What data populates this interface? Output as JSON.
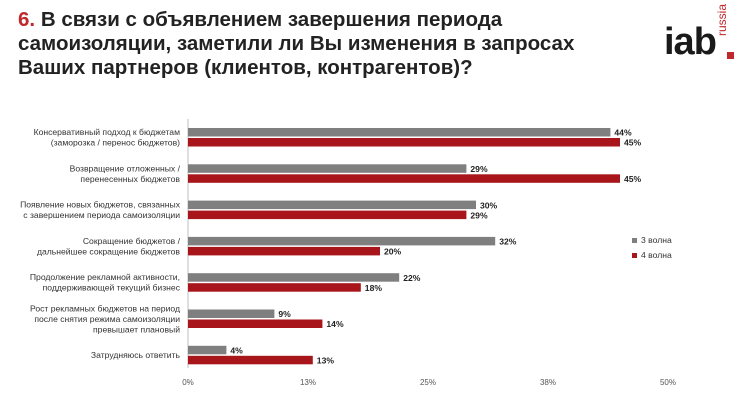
{
  "title": {
    "number": "6.",
    "text": "В связи с объявлением завершения периода самоизоляции, заметили ли Вы изменения в запросах Ваших партнеров (клиентов, контрагентов)?"
  },
  "logo": {
    "main": "iab",
    "sub": "russia"
  },
  "colors": {
    "series_1": "#7f7f7f",
    "series_2": "#a8161b",
    "accent": "#c0282d"
  },
  "chart_data": {
    "type": "bar",
    "orientation": "horizontal",
    "categories": [
      [
        "Консервативный подход к бюджетам",
        "(заморозка / перенос бюджетов)"
      ],
      [
        "Возвращение отложенных /",
        "перенесенных бюджетов"
      ],
      [
        "Появление новых бюджетов, связанных",
        "с завершением периода самоизоляции"
      ],
      [
        "Сокращение бюджетов /",
        "дальнейшее сокращение бюджетов"
      ],
      [
        "Продолжение рекламной активности,",
        "поддерживающей текущий бизнес"
      ],
      [
        "Рост рекламных бюджетов на период",
        "после снятия режима самоизоляции",
        "превышает плановый"
      ],
      [
        "Затрудняюсь ответить"
      ]
    ],
    "series": [
      {
        "name": "3 волна",
        "values": [
          44,
          29,
          30,
          32,
          22,
          9,
          4
        ],
        "labels": [
          "44%",
          "29%",
          "30%",
          "32%",
          "22%",
          "9%",
          "4%"
        ]
      },
      {
        "name": "4 волна",
        "values": [
          45,
          45,
          29,
          20,
          18,
          14,
          13
        ],
        "labels": [
          "45%",
          "45%",
          "29%",
          "20%",
          "18%",
          "14%",
          "13%"
        ]
      }
    ],
    "xlim": [
      0,
      50
    ],
    "x_ticks": [
      {
        "value": 0,
        "label": "0%"
      },
      {
        "value": 12.5,
        "label": "13%"
      },
      {
        "value": 25,
        "label": "25%"
      },
      {
        "value": 37.5,
        "label": "38%"
      },
      {
        "value": 50,
        "label": "50%"
      }
    ],
    "legend_position": "right"
  }
}
